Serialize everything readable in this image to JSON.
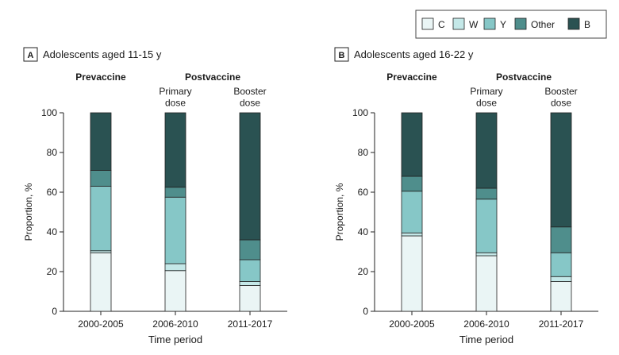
{
  "chart_data": {
    "type": "bar",
    "stacked": true,
    "normalized": true,
    "legend": {
      "position": "top-right",
      "entries": [
        {
          "name": "C",
          "color": "#eaf5f5"
        },
        {
          "name": "W",
          "color": "#c4e8e8"
        },
        {
          "name": "Y",
          "color": "#86c7c7"
        },
        {
          "name": "Other",
          "color": "#4f8e8c"
        },
        {
          "name": "B",
          "color": "#2a5252"
        }
      ]
    },
    "headers": {
      "prevaccine": "Prevaccine",
      "postvaccine": "Postvaccine",
      "primary": "Primary\ndose",
      "booster": "Booster\ndose"
    },
    "xlabel": "Time period",
    "ylabel": "Proportion, %",
    "ylim": [
      0,
      100
    ],
    "yticks": [
      0,
      20,
      40,
      60,
      80,
      100
    ],
    "categories": [
      "2000-2005",
      "2006-2010",
      "2011-2017"
    ],
    "panels": [
      {
        "tag": "A",
        "title": "Adolescents aged 11-15 y",
        "series": [
          {
            "name": "C",
            "values": [
              29.5,
              20.5,
              13
            ]
          },
          {
            "name": "W",
            "values": [
              1,
              3.5,
              2
            ]
          },
          {
            "name": "Y",
            "values": [
              32.5,
              33.5,
              11
            ]
          },
          {
            "name": "Other",
            "values": [
              8,
              5,
              10
            ]
          },
          {
            "name": "B",
            "values": [
              29,
              37.5,
              64
            ]
          }
        ]
      },
      {
        "tag": "B",
        "title": "Adolescents aged 16-22 y",
        "series": [
          {
            "name": "C",
            "values": [
              38,
              28,
              15
            ]
          },
          {
            "name": "W",
            "values": [
              1.5,
              1.5,
              2.5
            ]
          },
          {
            "name": "Y",
            "values": [
              21,
              27,
              12
            ]
          },
          {
            "name": "Other",
            "values": [
              7.5,
              5.5,
              13
            ]
          },
          {
            "name": "B",
            "values": [
              32,
              38,
              57.5
            ]
          }
        ]
      }
    ]
  }
}
